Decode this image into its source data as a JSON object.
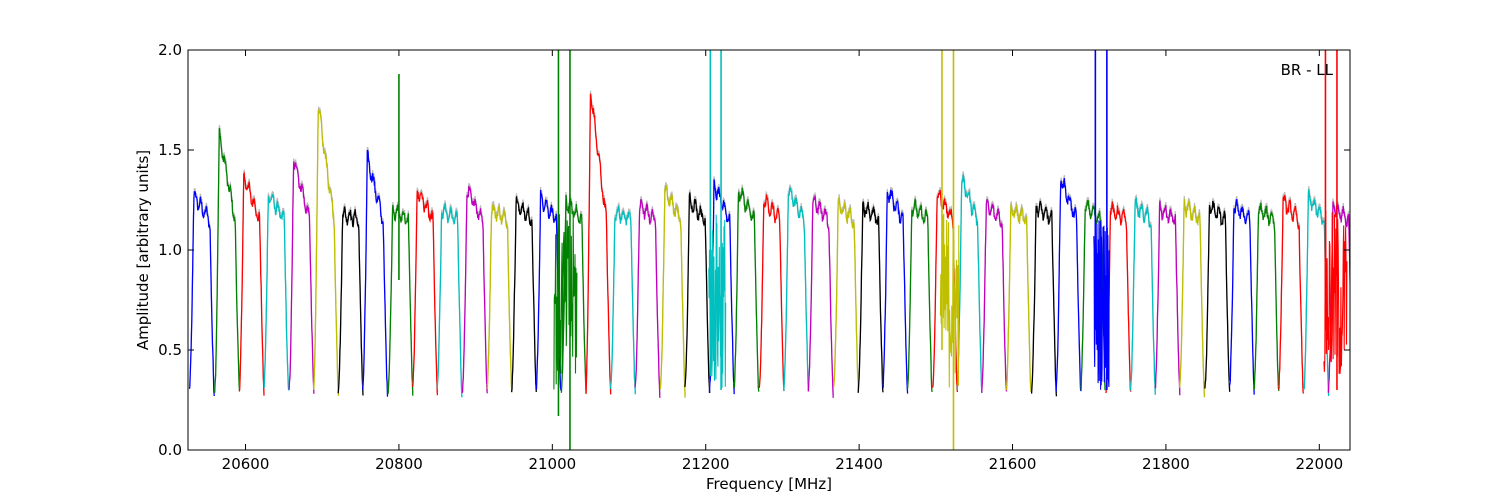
{
  "chart_data": {
    "type": "line",
    "title": "",
    "xlabel": "Frequency [MHz]",
    "ylabel": "Amplitude [arbitrary units]",
    "xlim": [
      20525,
      22040
    ],
    "ylim": [
      0.0,
      2.0
    ],
    "xticks": [
      20600,
      20800,
      21000,
      21200,
      21400,
      21600,
      21800,
      22000
    ],
    "yticks": [
      0.0,
      0.5,
      1.0,
      1.5,
      2.0
    ],
    "xtick_labels": [
      "20600",
      "20800",
      "21000",
      "21200",
      "21400",
      "21600",
      "21800",
      "22000"
    ],
    "ytick_labels": [
      "0.0",
      "0.5",
      "1.0",
      "1.5",
      "2.0"
    ],
    "grid": false,
    "annotation": "BR - LL",
    "color_cycle": [
      "#0000ff",
      "#008000",
      "#ff0000",
      "#00bfbf",
      "#bf00bf",
      "#bfbf00",
      "#000000"
    ],
    "reference_color": "#bbbbbb",
    "segment_start": 20527,
    "segment_width": 32.3,
    "segment_count": 47,
    "segment_centers": [
      20543,
      20576,
      20608,
      20640,
      20673,
      20705,
      20737,
      20769,
      20802,
      20834,
      20866,
      20899,
      20931,
      20963,
      20995,
      21028,
      21060,
      21092,
      21124,
      21157,
      21189,
      21221,
      21253,
      21286,
      21318,
      21350,
      21383,
      21415,
      21447,
      21479,
      21512,
      21544,
      21576,
      21608,
      21641,
      21673,
      21705,
      21738,
      21770,
      21802,
      21834,
      21867,
      21899,
      21931,
      21963,
      21996,
      22028
    ],
    "segment_peaks": [
      1.27,
      1.58,
      1.37,
      1.28,
      1.46,
      1.72,
      1.18,
      1.46,
      1.2,
      1.3,
      1.2,
      1.3,
      1.2,
      1.23,
      1.26,
      1.24,
      1.8,
      1.19,
      1.22,
      1.3,
      1.25,
      1.32,
      1.3,
      1.25,
      1.3,
      1.25,
      1.22,
      1.22,
      1.3,
      1.22,
      1.28,
      1.35,
      1.22,
      1.2,
      1.22,
      1.36,
      1.22,
      1.2,
      1.22,
      1.2,
      1.22,
      1.22,
      1.22,
      1.2,
      1.24,
      1.26,
      1.22
    ],
    "spikes": [
      {
        "x": 20800,
        "ymin": 0.85,
        "ymax": 1.88
      },
      {
        "x": 21008,
        "ymin": 0.17,
        "ymax": 2.0
      },
      {
        "x": 21023,
        "ymin": 0.0,
        "ymax": 2.0
      },
      {
        "x": 21206,
        "ymin": 0.4,
        "ymax": 2.0
      },
      {
        "x": 21220,
        "ymin": 0.3,
        "ymax": 2.0
      },
      {
        "x": 21508,
        "ymin": 0.5,
        "ymax": 2.0
      },
      {
        "x": 21523,
        "ymin": 0.0,
        "ymax": 2.0
      },
      {
        "x": 21708,
        "ymin": 0.6,
        "ymax": 2.0
      },
      {
        "x": 21723,
        "ymin": 0.3,
        "ymax": 2.0
      },
      {
        "x": 22008,
        "ymin": 0.6,
        "ymax": 2.0
      },
      {
        "x": 22023,
        "ymin": 0.3,
        "ymax": 2.0
      }
    ]
  }
}
